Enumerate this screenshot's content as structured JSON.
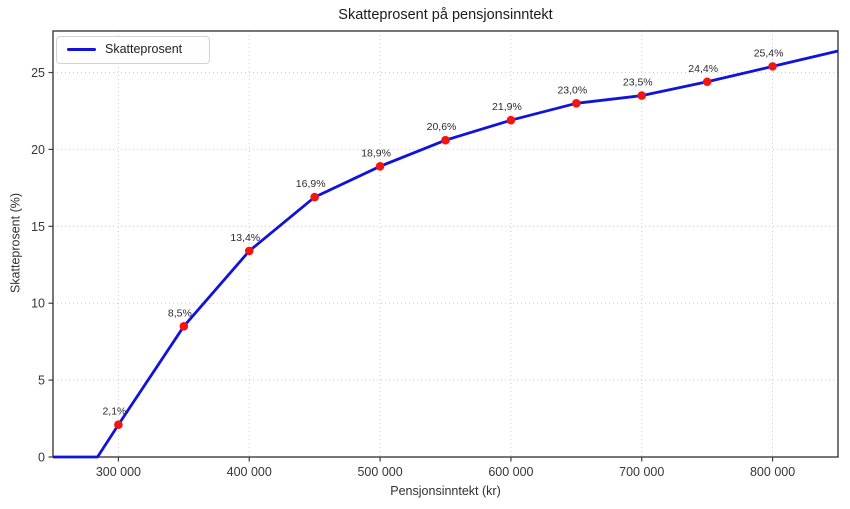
{
  "chart_data": {
    "type": "line",
    "title": "Skatteprosent på pensjonsinntekt",
    "xlabel": "Pensjonsinntekt (kr)",
    "ylabel": "Skatteprosent (%)",
    "xlim": [
      250000,
      850000
    ],
    "ylim": [
      0,
      27.7
    ],
    "grid": true,
    "x_ticks": [
      300000,
      400000,
      500000,
      600000,
      700000,
      800000
    ],
    "x_tick_labels": [
      "300 000",
      "400 000",
      "500 000",
      "600 000",
      "700 000",
      "800 000"
    ],
    "y_ticks": [
      0,
      5,
      10,
      15,
      20,
      25
    ],
    "y_tick_labels": [
      "0",
      "5",
      "10",
      "15",
      "20",
      "25"
    ],
    "legend": {
      "position": "upper-left",
      "label": "Skatteprosent"
    },
    "series": [
      {
        "name": "Skatteprosent",
        "x": [
          250000,
          284000,
          300000,
          350000,
          400000,
          450000,
          500000,
          550000,
          600000,
          650000,
          700000,
          750000,
          800000,
          850000
        ],
        "y": [
          0,
          0,
          2.1,
          8.5,
          13.4,
          16.9,
          18.9,
          20.6,
          21.9,
          23.0,
          23.5,
          24.4,
          25.4,
          26.4
        ]
      }
    ],
    "points": [
      {
        "x": 300000,
        "y": 2.1,
        "label": "2,1%"
      },
      {
        "x": 350000,
        "y": 8.5,
        "label": "8,5%"
      },
      {
        "x": 400000,
        "y": 13.4,
        "label": "13,4%"
      },
      {
        "x": 450000,
        "y": 16.9,
        "label": "16,9%"
      },
      {
        "x": 500000,
        "y": 18.9,
        "label": "18,9%"
      },
      {
        "x": 550000,
        "y": 20.6,
        "label": "20,6%"
      },
      {
        "x": 600000,
        "y": 21.9,
        "label": "21,9%"
      },
      {
        "x": 650000,
        "y": 23.0,
        "label": "23,0%"
      },
      {
        "x": 700000,
        "y": 23.5,
        "label": "23,5%"
      },
      {
        "x": 750000,
        "y": 24.4,
        "label": "24,4%"
      },
      {
        "x": 800000,
        "y": 25.4,
        "label": "25,4%"
      }
    ],
    "colors": {
      "line": "#1212dd",
      "marker": "#f21510",
      "grid": "#cbcbcb",
      "spine": "#3d3d3d",
      "tick_text": "#363636",
      "annotation_text": "#2b2b2b"
    }
  }
}
